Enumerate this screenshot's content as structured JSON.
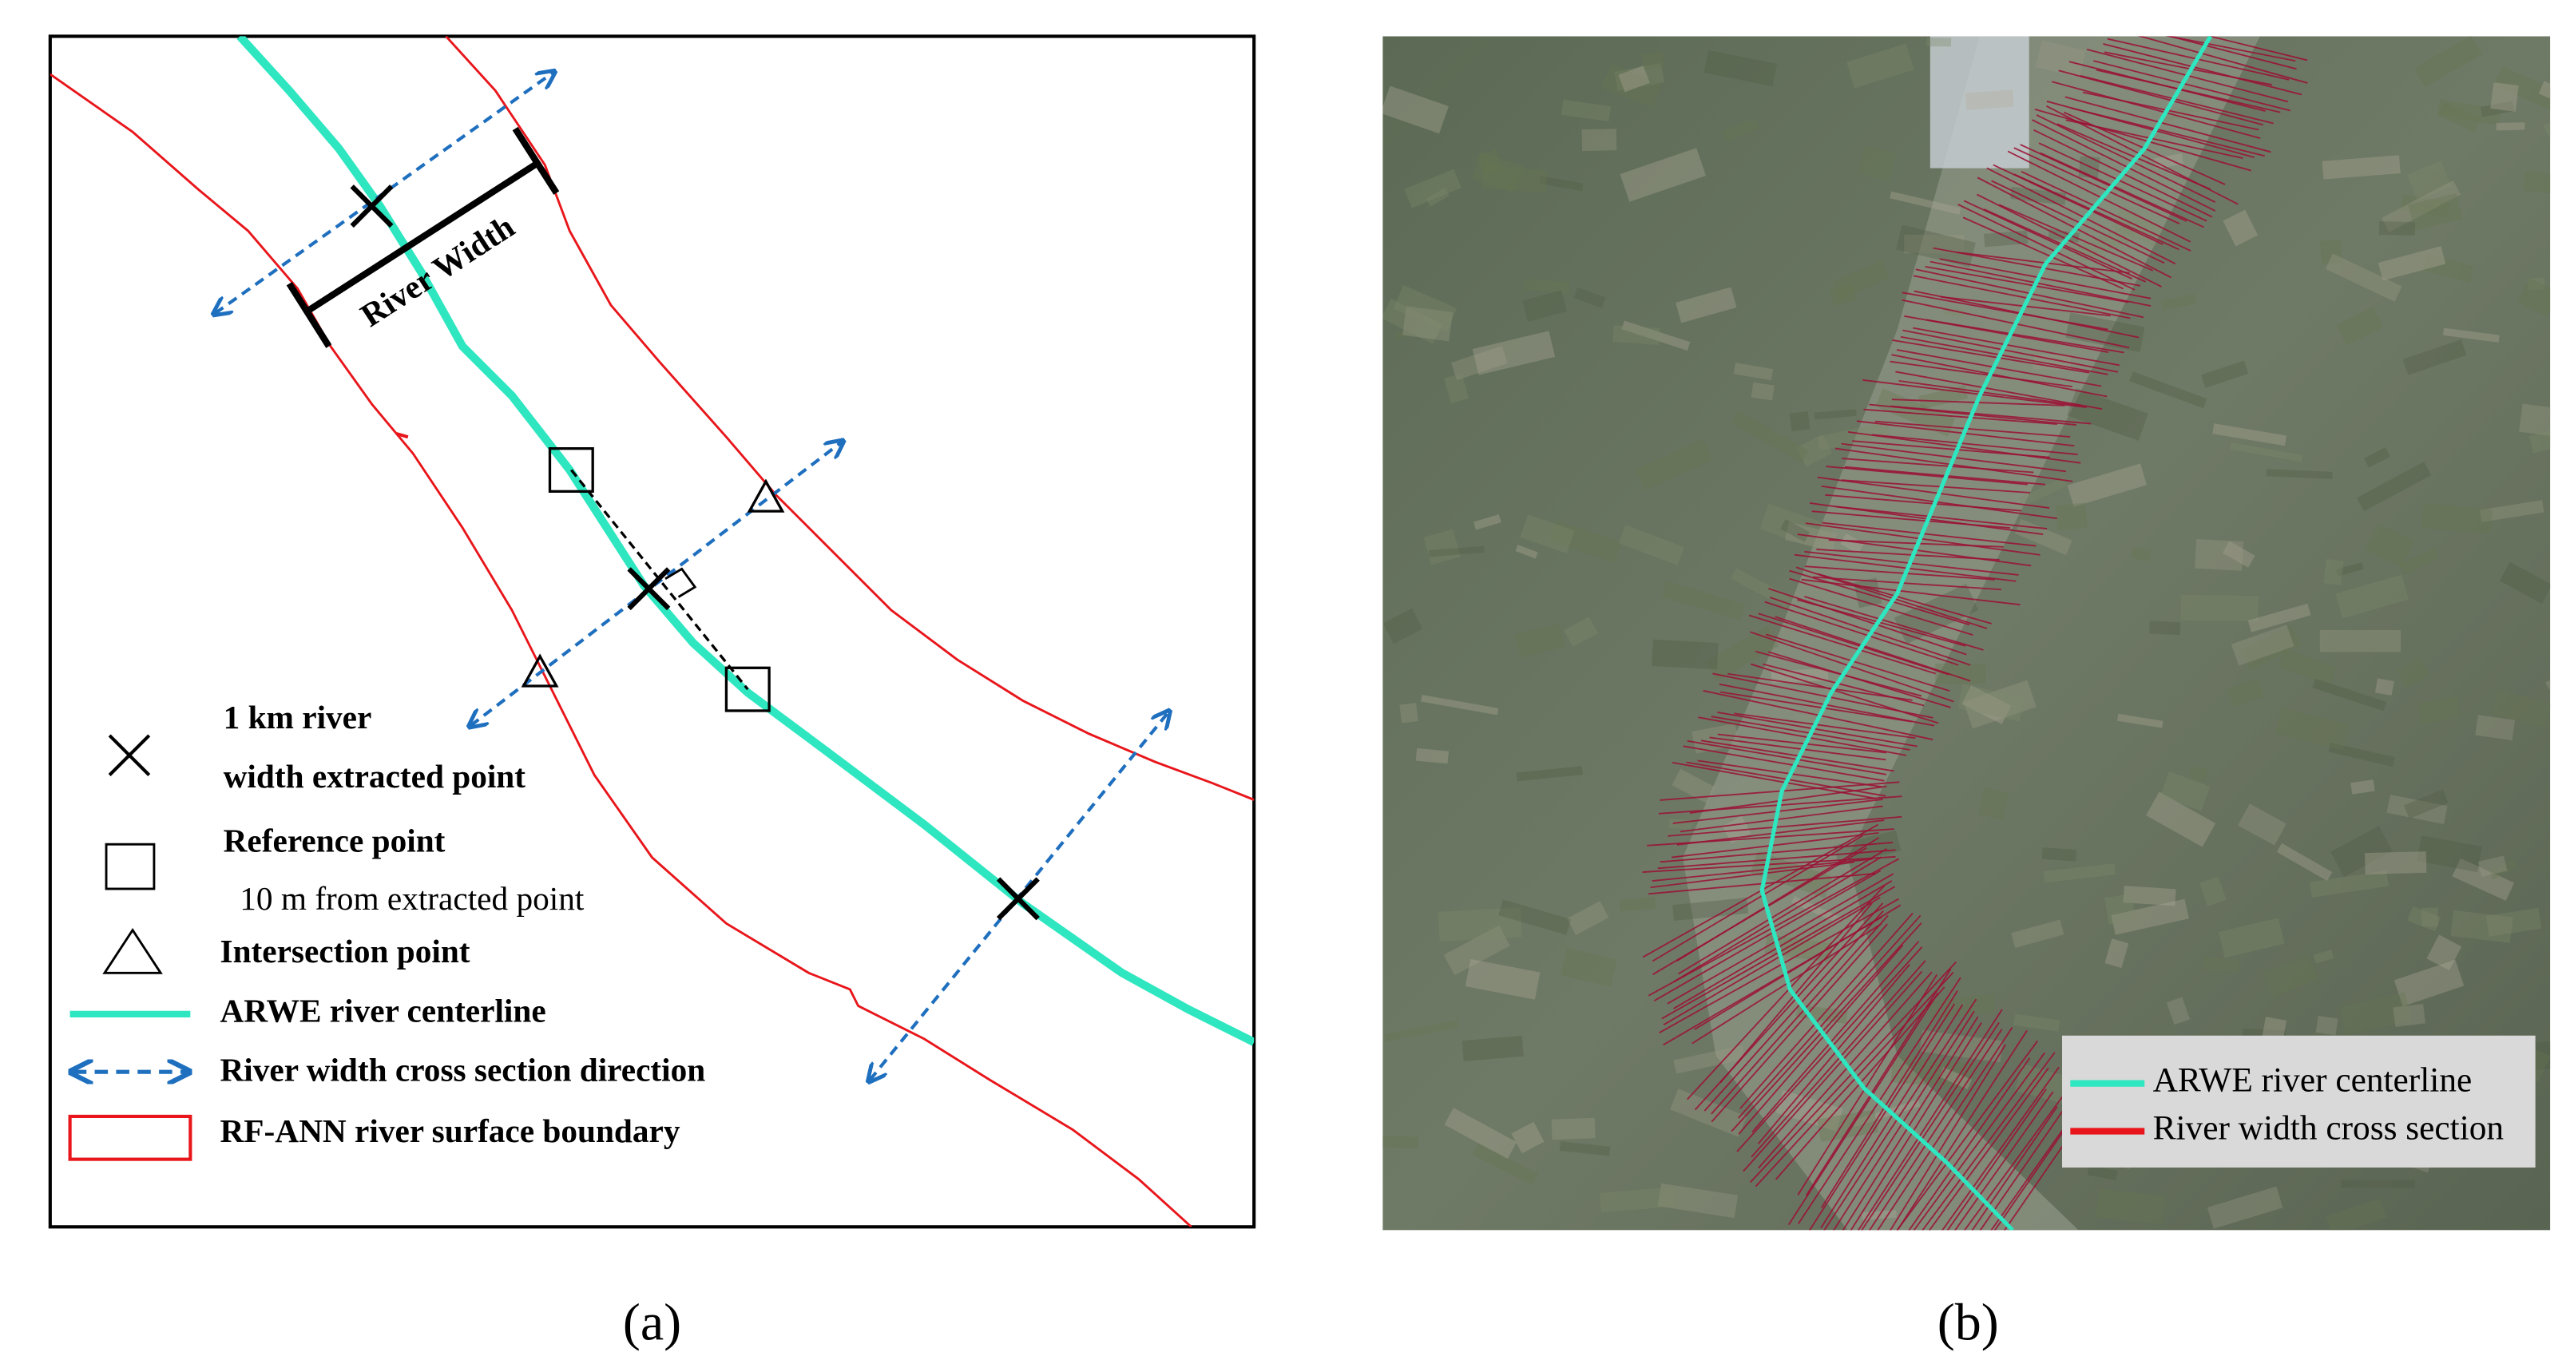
{
  "panel_a": {
    "river_width_label": "River Width",
    "legend": {
      "extracted_point": [
        "1 km river",
        "width extracted point"
      ],
      "reference_point": "Reference point",
      "reference_note": "10 m from extracted point",
      "intersection_point": "Intersection point",
      "centerline": "ARWE  river centerline",
      "cross_section": "River width cross section direction",
      "boundary": "RF-ANN river surface boundary"
    },
    "caption": "(a)"
  },
  "panel_b": {
    "legend": {
      "centerline": "ARWE river centerline",
      "cross_section": "River width cross section"
    },
    "caption": "(b)"
  }
}
